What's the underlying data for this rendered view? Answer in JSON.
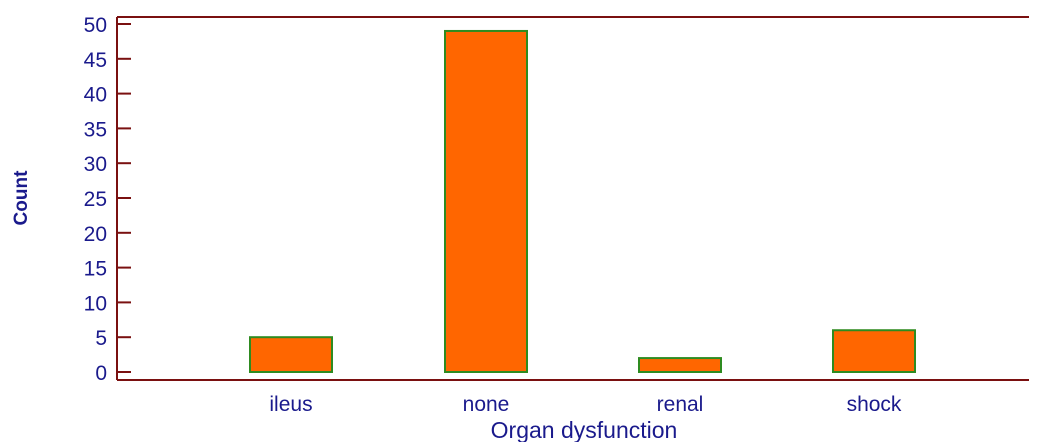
{
  "chart_data": {
    "type": "bar",
    "categories": [
      "ileus",
      "none",
      "renal",
      "shock"
    ],
    "values": [
      5,
      49,
      2,
      6
    ],
    "xlabel": "Organ dysfunction",
    "ylabel": "Count",
    "ylim": [
      0,
      50
    ],
    "yticks": [
      0,
      5,
      10,
      15,
      20,
      25,
      30,
      35,
      40,
      45,
      50
    ],
    "grid": false,
    "legend": "none"
  },
  "colors": {
    "bar_fill": "#ff6600",
    "bar_stroke": "#2e8b20",
    "axis": "#7a1010",
    "text": "#1a1a8c"
  }
}
